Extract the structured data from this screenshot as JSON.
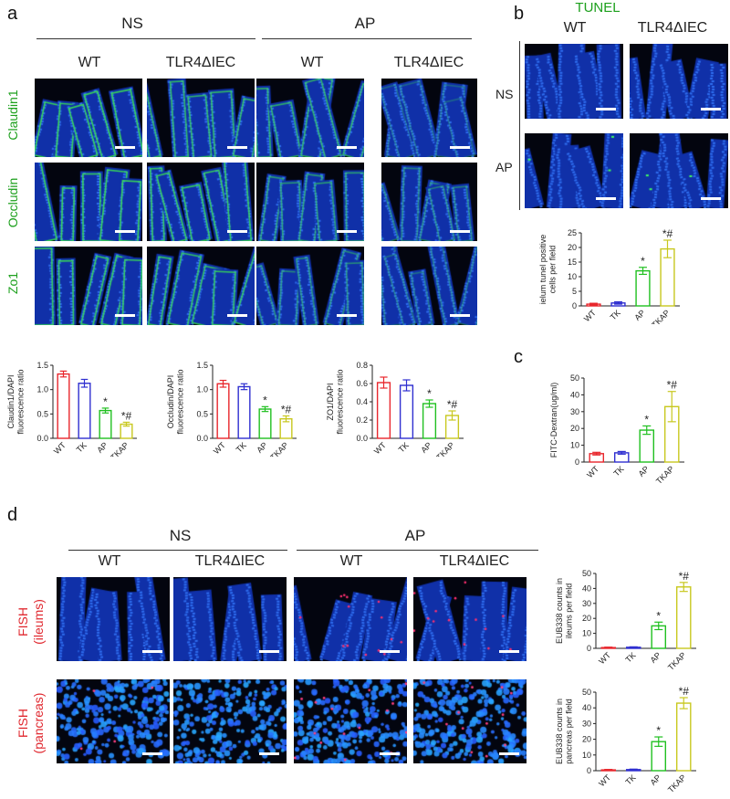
{
  "panels": {
    "a": {
      "letter": "a",
      "groups": [
        "NS",
        "AP"
      ],
      "columns": [
        "WT",
        "TLR4ΔIEC",
        "WT",
        "TLR4ΔIEC"
      ],
      "rows": [
        "Claudin1",
        "Occludin",
        "Zo1"
      ]
    },
    "b": {
      "letter": "b",
      "title": "TUNEL",
      "columns": [
        "WT",
        "TLR4ΔIEC"
      ],
      "rows": [
        "NS",
        "AP"
      ]
    },
    "c": {
      "letter": "c"
    },
    "d": {
      "letter": "d",
      "groups": [
        "NS",
        "AP"
      ],
      "columns": [
        "WT",
        "TLR4ΔIEC",
        "WT",
        "TLR4ΔIEC"
      ],
      "rows": [
        "FISH\n(ileums)",
        "FISH\n(pancreas)"
      ]
    }
  },
  "colors": {
    "WT": "#e8262c",
    "TK": "#2f2fd0",
    "AP": "#20c020",
    "TKAP": "#c8c81e",
    "stain_green": "#1da01d",
    "stain_red": "#e0282f"
  },
  "chart_data": [
    {
      "id": "a-claudin1",
      "type": "bar",
      "categories": [
        "WT",
        "TK",
        "AP",
        "TKAP"
      ],
      "values": [
        1.32,
        1.13,
        0.57,
        0.29
      ],
      "errors": [
        0.06,
        0.08,
        0.05,
        0.04
      ],
      "annotations": [
        "",
        "",
        "*",
        "*#"
      ],
      "ylabel": "Claudin1/DAPI\nfluorescence ratio",
      "ylim": [
        0,
        1.5
      ],
      "yticks": [
        "0.0",
        "0.5",
        "1.0",
        "1.5"
      ],
      "ytick_values": [
        0,
        0.5,
        1.0,
        1.5
      ]
    },
    {
      "id": "a-occludin",
      "type": "bar",
      "categories": [
        "WT",
        "TK",
        "AP",
        "TKAP"
      ],
      "values": [
        1.12,
        1.06,
        0.6,
        0.4
      ],
      "errors": [
        0.07,
        0.06,
        0.05,
        0.06
      ],
      "annotations": [
        "",
        "",
        "*",
        "*#"
      ],
      "ylabel": "Occludin/DAPI\nfluorescence ratio",
      "ylim": [
        0,
        1.5
      ],
      "yticks": [
        "0.0",
        "0.5",
        "1.0",
        "1.5"
      ],
      "ytick_values": [
        0,
        0.5,
        1.0,
        1.5
      ]
    },
    {
      "id": "a-zo1",
      "type": "bar",
      "categories": [
        "WT",
        "TK",
        "AP",
        "TKAP"
      ],
      "values": [
        0.61,
        0.58,
        0.38,
        0.25
      ],
      "errors": [
        0.06,
        0.06,
        0.04,
        0.05
      ],
      "annotations": [
        "",
        "",
        "*",
        "*#"
      ],
      "ylabel": "ZO1/DAPI\nfluorescence ratio",
      "ylim": [
        0,
        0.8
      ],
      "yticks": [
        "0.0",
        "0.2",
        "0.4",
        "0.6",
        "0.8"
      ],
      "ytick_values": [
        0,
        0.2,
        0.4,
        0.6,
        0.8
      ]
    },
    {
      "id": "b-tunel",
      "type": "bar",
      "categories": [
        "WT",
        "TK",
        "AP",
        "TKAP"
      ],
      "values": [
        0.6,
        1.0,
        12.0,
        19.5
      ],
      "errors": [
        0.3,
        0.4,
        1.2,
        3.0
      ],
      "annotations": [
        "",
        "",
        "*",
        "*#"
      ],
      "ylabel": "ielum tunel positive\ncells per field",
      "ylim": [
        0,
        25
      ],
      "yticks": [
        "0",
        "5",
        "10",
        "15",
        "20",
        "25"
      ],
      "ytick_values": [
        0,
        5,
        10,
        15,
        20,
        25
      ]
    },
    {
      "id": "c-fitc",
      "type": "bar",
      "categories": [
        "WT",
        "TK",
        "AP",
        "TKAP"
      ],
      "values": [
        5.0,
        5.5,
        19.0,
        33.0
      ],
      "errors": [
        0.8,
        0.8,
        2.5,
        9.0
      ],
      "annotations": [
        "",
        "",
        "*",
        "*#"
      ],
      "ylabel": "FITC-Dextran(ug/ml)",
      "ylim": [
        0,
        50
      ],
      "yticks": [
        "0",
        "10",
        "20",
        "30",
        "40",
        "50"
      ],
      "ytick_values": [
        0,
        10,
        20,
        30,
        40,
        50
      ]
    },
    {
      "id": "d-ileums",
      "type": "bar",
      "categories": [
        "WT",
        "TK",
        "AP",
        "TKAP"
      ],
      "values": [
        0.5,
        0.7,
        15.0,
        41.0
      ],
      "errors": [
        0.3,
        0.3,
        2.5,
        3.0
      ],
      "annotations": [
        "",
        "",
        "*",
        "*#"
      ],
      "ylabel": "EUB338 counts in\nileums per field",
      "ylim": [
        0,
        50
      ],
      "yticks": [
        "0",
        "10",
        "20",
        "30",
        "40",
        "50"
      ],
      "ytick_values": [
        0,
        10,
        20,
        30,
        40,
        50
      ]
    },
    {
      "id": "d-pancreas",
      "type": "bar",
      "categories": [
        "WT",
        "TK",
        "AP",
        "TKAP"
      ],
      "values": [
        0.5,
        0.7,
        18.5,
        43.0
      ],
      "errors": [
        0.3,
        0.3,
        3.0,
        3.5
      ],
      "annotations": [
        "",
        "",
        "*",
        "*#"
      ],
      "ylabel": "EUB338 counts in\npancreas per field",
      "ylim": [
        0,
        50
      ],
      "yticks": [
        "0",
        "10",
        "20",
        "30",
        "40",
        "50"
      ],
      "ytick_values": [
        0,
        10,
        20,
        30,
        40,
        50
      ]
    }
  ]
}
